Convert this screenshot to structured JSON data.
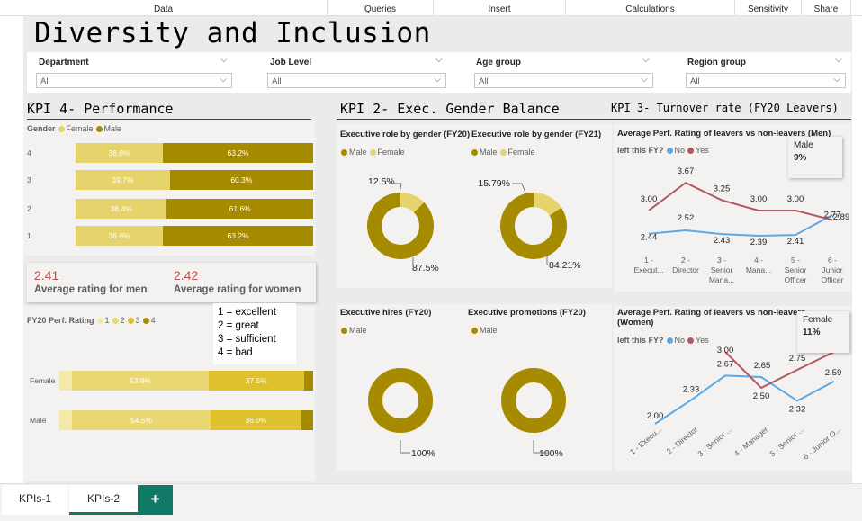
{
  "menu": [
    "Data",
    "Queries",
    "Insert",
    "Calculations",
    "Sensitivity",
    "Share"
  ],
  "title": "Diversity and Inclusion",
  "slicers": [
    {
      "label": "Department",
      "value": "All"
    },
    {
      "label": "Job Level",
      "value": "All"
    },
    {
      "label": "Age group",
      "value": "All"
    },
    {
      "label": "Region group",
      "value": "All"
    }
  ],
  "kpi4": {
    "heading": "KPI 4- Performance",
    "legend_title": "Gender",
    "legend": [
      "Female",
      "Male"
    ],
    "avg_men_value": "2.41",
    "avg_men_label": "Average rating for men",
    "avg_women_value": "2.42",
    "avg_women_label": "Average rating for women",
    "perf_legend_title": "FY20 Perf. Rating",
    "perf_legend": [
      "1",
      "2",
      "3",
      "4"
    ],
    "rating_key": [
      "1 = excellent",
      "2 = great",
      "3 = sufficient",
      "4 = bad"
    ]
  },
  "kpi2": {
    "heading": "KPI 2- Exec. Gender Balance",
    "fy20_title": "Executive role by gender (FY20)",
    "fy21_title": "Executive role by gender (FY21)",
    "legend_male": "Male",
    "legend_female": "Female",
    "hires_title": "Executive hires (FY20)",
    "promotions_title": "Executive promotions (FY20)"
  },
  "kpi3": {
    "heading": "KPI 3- Turnover rate (FY20 Leavers)",
    "men_title": "Average Perf. Rating of leavers vs non-leavers (Men)",
    "women_title": "Average Perf. Rating of leavers vs non-leavers (Women)",
    "legend_title": "left this FY?",
    "legend": [
      "No",
      "Yes"
    ],
    "men_tooltip_label": "Male",
    "men_tooltip_value": "9%",
    "women_tooltip_label": "Female",
    "women_tooltip_value": "11%"
  },
  "tabs": [
    "KPIs-1",
    "KPIs-2",
    "+"
  ],
  "colors": {
    "female": "#e6d36b",
    "male": "#a68a00",
    "no": "#5ba9e6",
    "yes": "#b35a60",
    "r1": "#f4e9a9",
    "r2": "#e9d772",
    "r3": "#dfc02e",
    "r4": "#a68a00"
  },
  "chart_data": [
    {
      "type": "bar",
      "subtype": "100% stacked horizontal",
      "title": "",
      "categories": [
        "4",
        "3",
        "2",
        "1"
      ],
      "series": [
        {
          "name": "Female",
          "values": [
            36.8,
            39.7,
            38.4,
            36.8
          ],
          "labels": [
            "36.8%",
            "39.7%",
            "38.4%",
            "36.8%"
          ]
        },
        {
          "name": "Male",
          "values": [
            63.2,
            60.3,
            61.6,
            63.2
          ],
          "labels": [
            "63.2%",
            "60.3%",
            "61.6%",
            "63.2%"
          ]
        }
      ]
    },
    {
      "type": "bar",
      "subtype": "100% stacked horizontal",
      "title": "",
      "categories": [
        "Female",
        "Male"
      ],
      "series": [
        {
          "name": "1",
          "values": [
            5.0,
            5.0
          ],
          "labels": [
            "",
            ""
          ]
        },
        {
          "name": "2",
          "values": [
            53.8,
            54.5
          ],
          "labels": [
            "53.8%",
            "54.5%"
          ]
        },
        {
          "name": "3",
          "values": [
            37.5,
            36.0
          ],
          "labels": [
            "37.5%",
            "36.0%"
          ]
        },
        {
          "name": "4",
          "values": [
            3.7,
            4.5
          ],
          "labels": [
            "",
            ""
          ]
        }
      ]
    },
    {
      "type": "pie",
      "subtype": "donut",
      "title": "Executive role by gender (FY20)",
      "slices": [
        {
          "name": "Male",
          "value": 87.5,
          "label": "87.5%"
        },
        {
          "name": "Female",
          "value": 12.5,
          "label": "12.5%"
        }
      ]
    },
    {
      "type": "pie",
      "subtype": "donut",
      "title": "Executive role by gender (FY21)",
      "slices": [
        {
          "name": "Male",
          "value": 84.21,
          "label": "84.21%"
        },
        {
          "name": "Female",
          "value": 15.79,
          "label": "15.79%"
        }
      ]
    },
    {
      "type": "pie",
      "subtype": "donut",
      "title": "Executive hires (FY20)",
      "slices": [
        {
          "name": "Male",
          "value": 100,
          "label": "100%"
        }
      ]
    },
    {
      "type": "pie",
      "subtype": "donut",
      "title": "Executive promotions (FY20)",
      "slices": [
        {
          "name": "Male",
          "value": 100,
          "label": "100%"
        }
      ]
    },
    {
      "type": "line",
      "title": "Average Perf. Rating of leavers vs non-leavers (Men)",
      "categories": [
        "1 - Execut...",
        "2 - Director",
        "3 - Senior Mana...",
        "4 - Mana...",
        "5 - Senior Officer",
        "6 - Junior Officer"
      ],
      "series": [
        {
          "name": "No",
          "values": [
            2.44,
            2.52,
            2.43,
            2.39,
            2.41,
            2.89
          ]
        },
        {
          "name": "Yes",
          "values": [
            3.0,
            3.67,
            3.25,
            3.0,
            3.0,
            2.77
          ]
        }
      ]
    },
    {
      "type": "line",
      "title": "Average Perf. Rating of leavers vs non-leavers (Women)",
      "categories": [
        "1 - Execu...",
        "2 - Director",
        "3 - Senior ...",
        "4 - Manager",
        "5 - Senior ...",
        "6 - Junior O..."
      ],
      "series": [
        {
          "name": "No",
          "values": [
            2.0,
            2.33,
            2.67,
            2.65,
            2.32,
            2.59
          ]
        },
        {
          "name": "Yes",
          "values": [
            null,
            null,
            3.0,
            2.5,
            2.75,
            3.0
          ]
        }
      ]
    }
  ]
}
